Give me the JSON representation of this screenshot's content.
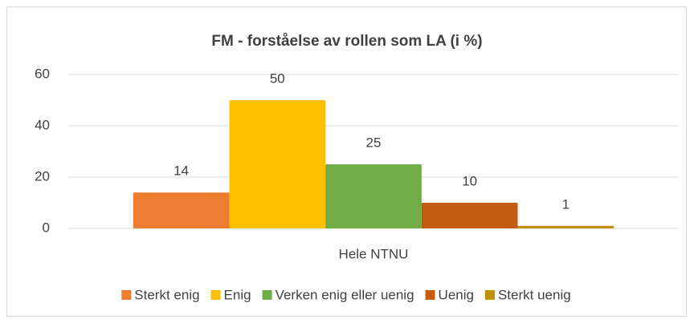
{
  "chart_data": {
    "type": "bar",
    "title": "FM - forståelse av rollen som LA (i %)",
    "categories": [
      "Hele NTNU"
    ],
    "series": [
      {
        "name": "Sterkt enig",
        "color": "#ED7D31",
        "values": [
          14
        ]
      },
      {
        "name": "Enig",
        "color": "#FFC000",
        "values": [
          50
        ]
      },
      {
        "name": "Verken enig eller uenig",
        "color": "#70AD47",
        "values": [
          25
        ]
      },
      {
        "name": "Uenig",
        "color": "#C55A11",
        "values": [
          10
        ]
      },
      {
        "name": "Sterkt uenig",
        "color": "#BF9000",
        "values": [
          1
        ]
      }
    ],
    "ylim": [
      0,
      60
    ],
    "yticks": [
      0,
      20,
      40,
      60
    ],
    "grid": true,
    "legend": "bottom"
  }
}
